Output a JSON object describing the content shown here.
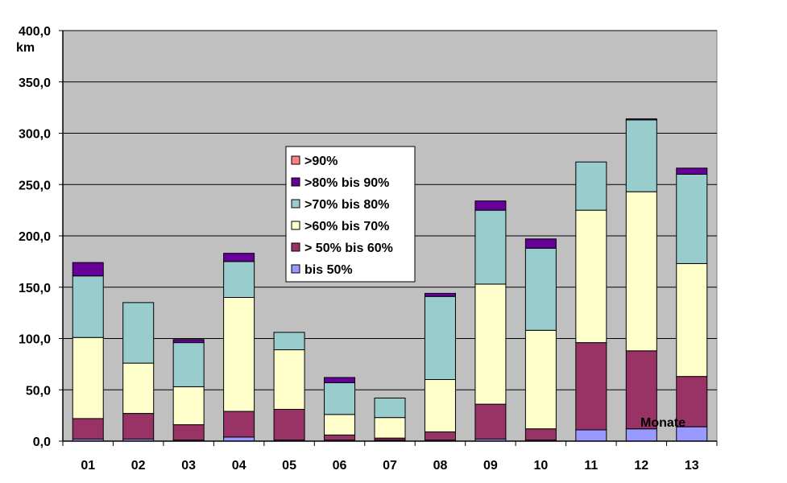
{
  "chart_data": {
    "type": "bar",
    "stacked": true,
    "unit_label": "km",
    "annotation": "Monate",
    "categories": [
      "01",
      "02",
      "03",
      "04",
      "05",
      "06",
      "07",
      "08",
      "09",
      "10",
      "11",
      "12",
      "13"
    ],
    "ylim": [
      0,
      400
    ],
    "yticks": [
      "0,0",
      "50,0",
      "100,0",
      "150,0",
      "200,0",
      "250,0",
      "300,0",
      "350,0",
      "400,0"
    ],
    "grid": true,
    "legend_position": "center",
    "plot_background": "#c0c0c0",
    "series": [
      {
        "name": "bis  50%",
        "color": "#9999ff",
        "values": [
          2,
          2,
          1,
          4,
          1,
          1,
          1,
          1,
          2,
          1,
          11,
          12,
          14
        ]
      },
      {
        "name": "> 50% bis 60%",
        "color": "#993366",
        "values": [
          20,
          25,
          15,
          25,
          30,
          5,
          2,
          8,
          34,
          11,
          85,
          76,
          49
        ]
      },
      {
        "name": ">60% bis 70%",
        "color": "#ffffcc",
        "values": [
          79,
          49,
          37,
          111,
          58,
          20,
          20,
          51,
          117,
          96,
          129,
          155,
          110
        ]
      },
      {
        "name": ">70% bis 80%",
        "color": "#99cccc",
        "values": [
          60,
          59,
          43,
          35,
          17,
          31,
          19,
          81,
          72,
          80,
          47,
          70,
          87
        ]
      },
      {
        "name": ">80% bis 90%",
        "color": "#660099",
        "values": [
          13,
          0,
          3,
          8,
          0,
          5,
          0,
          3,
          9,
          9,
          0,
          1,
          6
        ]
      },
      {
        "name": ">90%",
        "color": "#ff8080",
        "values": [
          0,
          0,
          0,
          0,
          0,
          0,
          0,
          0,
          0,
          0,
          0,
          0,
          0
        ]
      }
    ]
  }
}
